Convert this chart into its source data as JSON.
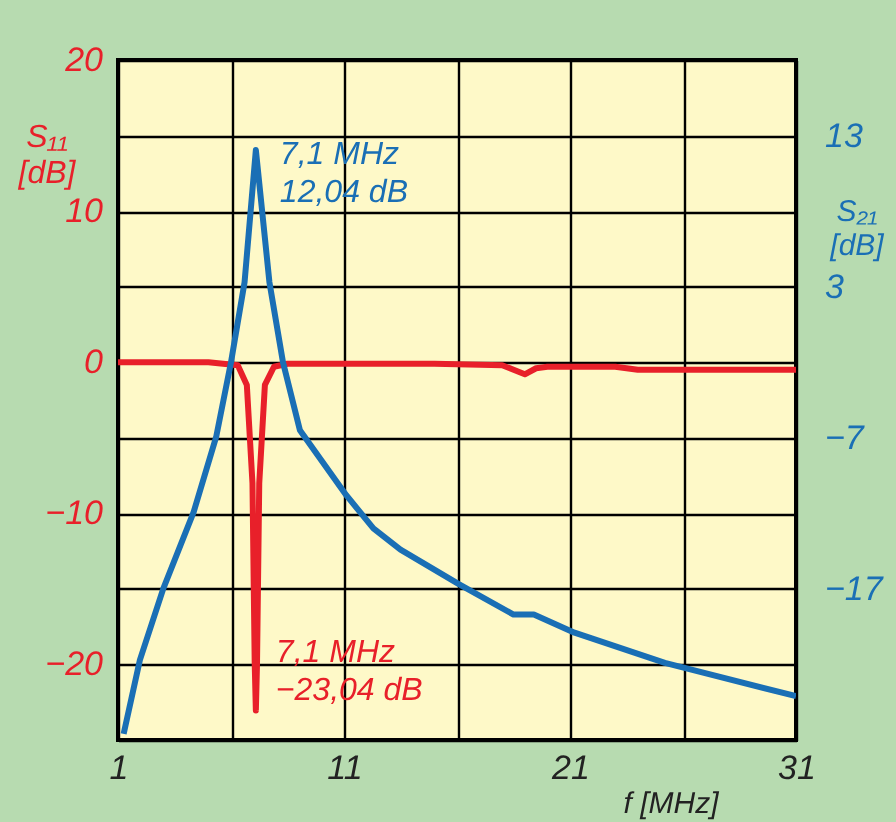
{
  "chart_data": {
    "type": "line",
    "xlabel": "f [MHz]",
    "ylabel": "S₁₁ [dB]",
    "y2label": "S₂₁ [dB]",
    "xlim": [
      1,
      31
    ],
    "xticks": [
      1,
      {
        "value": 6,
        "label": null
      },
      11,
      {
        "value": 16,
        "label": null
      },
      21,
      {
        "value": 26,
        "label": null
      },
      31
    ],
    "ylim": [
      -25,
      20
    ],
    "yticks": [
      {
        "value": -25,
        "label": null
      },
      -20,
      {
        "value": -15,
        "label": null
      },
      -10,
      {
        "value": -5,
        "label": null
      },
      0,
      {
        "value": 5,
        "label": null
      },
      10,
      {
        "value": 15,
        "label": null
      },
      20
    ],
    "y2lim": [
      -27,
      18
    ],
    "y2ticks": [
      -17,
      -7,
      3,
      13
    ],
    "grid": true,
    "legend": false,
    "marker": "none",
    "line_style": "solid",
    "series": [
      {
        "color": "#e8202a",
        "x": [
          1,
          5,
          6.3,
          6.7,
          6.95,
          7.05,
          7.1,
          7.15,
          7.25,
          7.5,
          7.9,
          8.5,
          15,
          18,
          19,
          19.5,
          20,
          23,
          24,
          28,
          31
        ],
        "values": [
          0,
          0,
          -0.2,
          -1.5,
          -8,
          -20,
          -23.04,
          -20,
          -8,
          -1.5,
          -0.3,
          -0.1,
          -0.1,
          -0.2,
          -0.8,
          -0.4,
          -0.3,
          -0.3,
          -0.5,
          -0.5,
          -0.5
        ]
      },
      {
        "color": "#1a6fb5",
        "axis": "y2",
        "x": [
          1.25,
          1.97,
          3.0,
          4.35,
          5.35,
          6.0,
          6.6,
          7.1,
          7.7,
          8.3,
          9.05,
          11.1,
          12.3,
          13.5,
          16.1,
          18.5,
          19.4,
          21.2,
          25.2,
          31
        ],
        "values": [
          -26.6,
          -21.7,
          -17,
          -11.9,
          -6.9,
          -2,
          3.3,
          12.04,
          3.3,
          -2,
          -6.5,
          -10.8,
          -13,
          -14.4,
          -16.7,
          -18.7,
          -18.7,
          -19.9,
          -21.9,
          -24.1
        ]
      }
    ],
    "annotations": [
      {
        "text": "7,1 MHz\n−23,04 dB",
        "x": 7.1,
        "y": -23.04
      },
      {
        "text": "7,1 MHz\n12,04 dB",
        "x": 7.1,
        "y": 12.04
      }
    ]
  }
}
